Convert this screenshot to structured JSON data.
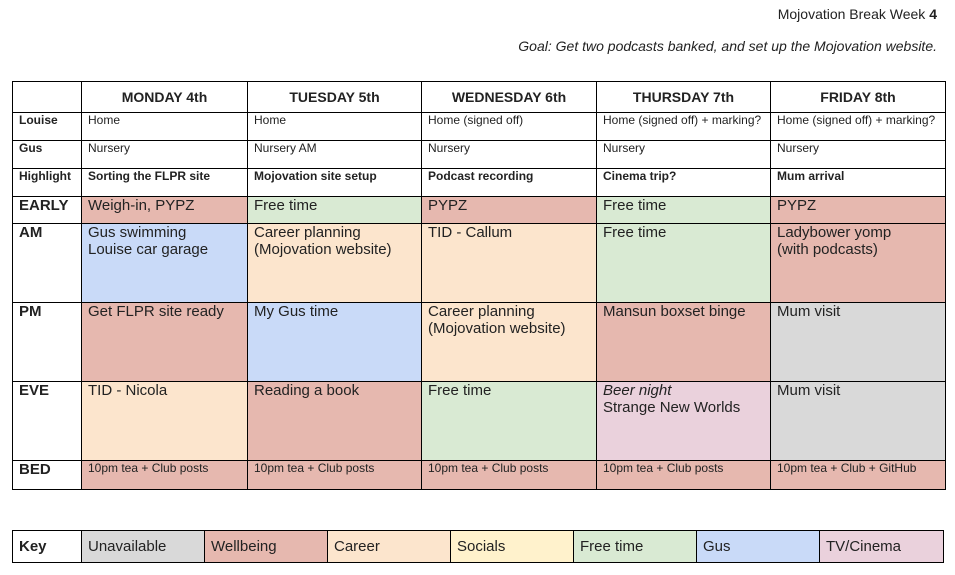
{
  "header": {
    "title_prefix": "Mojovation Break Week ",
    "title_week": "4",
    "goal": "Goal: Get two podcasts banked, and set up the Mojovation website."
  },
  "days": [
    "MONDAY 4th",
    "TUESDAY 5th",
    "WEDNESDAY 6th",
    "THURSDAY 7th",
    "FRIDAY 8th"
  ],
  "rows": {
    "louise": {
      "label": "Louise",
      "cells": [
        "Home",
        "Home",
        "Home (signed off)",
        "Home (signed off) + marking?",
        "Home (signed off) + marking?"
      ]
    },
    "gus": {
      "label": "Gus",
      "cells": [
        "Nursery",
        "Nursery AM",
        "Nursery",
        "Nursery",
        "Nursery"
      ]
    },
    "highlight": {
      "label": "Highlight",
      "cells": [
        "Sorting the FLPR site",
        "Mojovation site setup",
        "Podcast recording",
        "Cinema trip?",
        "Mum arrival"
      ]
    },
    "early": {
      "label": "EARLY",
      "cells": [
        {
          "lines": [
            "Weigh-in, PYPZ"
          ]
        },
        {
          "lines": [
            "Free time"
          ]
        },
        {
          "lines": [
            "PYPZ"
          ]
        },
        {
          "lines": [
            "Free time"
          ]
        },
        {
          "lines": [
            "PYPZ"
          ]
        }
      ]
    },
    "am": {
      "label": "AM",
      "cells": [
        {
          "lines": [
            "Gus swimming",
            "Louise car garage"
          ]
        },
        {
          "lines": [
            "Career planning",
            "(Mojovation website)"
          ]
        },
        {
          "lines": [
            "TID - Callum"
          ]
        },
        {
          "lines": [
            "Free time"
          ]
        },
        {
          "lines": [
            "Ladybower yomp",
            "(with podcasts)"
          ]
        }
      ]
    },
    "pm": {
      "label": "PM",
      "cells": [
        {
          "lines": [
            "Get FLPR site ready"
          ]
        },
        {
          "lines": [
            "My Gus time"
          ]
        },
        {
          "lines": [
            "Career planning",
            "(Mojovation website)"
          ]
        },
        {
          "lines": [
            "Mansun boxset binge"
          ]
        },
        {
          "lines": [
            "Mum visit"
          ]
        }
      ]
    },
    "eve": {
      "label": "EVE",
      "cells": [
        {
          "lines": [
            "TID - Nicola"
          ]
        },
        {
          "lines": [
            "Reading a book"
          ]
        },
        {
          "lines": [
            "Free time"
          ]
        },
        {
          "lines": [
            "Beer night",
            "Strange New Worlds"
          ]
        },
        {
          "lines": [
            "Mum visit"
          ]
        }
      ]
    },
    "bed": {
      "label": "BED",
      "cells": [
        {
          "lines": [
            "10pm tea + Club posts"
          ]
        },
        {
          "lines": [
            "10pm tea + Club posts"
          ]
        },
        {
          "lines": [
            "10pm tea + Club posts"
          ]
        },
        {
          "lines": [
            "10pm tea + Club posts"
          ]
        },
        {
          "lines": [
            "10pm tea + Club + GitHub"
          ]
        }
      ]
    }
  },
  "key": {
    "label": "Key",
    "items": [
      "Unavailable",
      "Wellbeing",
      "Career",
      "Socials",
      "Free time",
      "Gus",
      "TV/Cinema"
    ]
  },
  "colors": {
    "unavailable": "#d9d9d9",
    "wellbeing": "#e6b8af",
    "career": "#fce5cd",
    "socials": "#fff2cc",
    "free_time": "#d9ead3",
    "gus": "#c9daf8",
    "tv_cinema": "#ead1dc"
  }
}
